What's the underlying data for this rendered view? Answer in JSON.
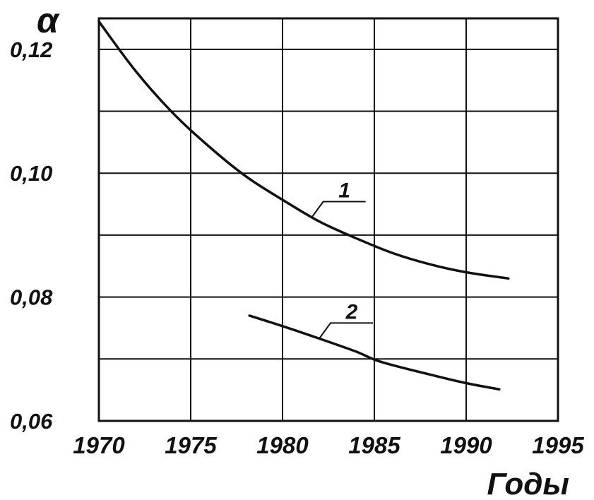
{
  "chart_data": {
    "type": "line",
    "title": "",
    "ylabel": "α",
    "xlabel": "Годы",
    "x_ticks": [
      "1970",
      "1975",
      "1980",
      "1985",
      "1990",
      "1995"
    ],
    "y_ticks": [
      "0,06",
      "0,08",
      "0,10",
      "0,12"
    ],
    "xlim": [
      1970,
      1995
    ],
    "ylim": [
      0.06,
      0.125
    ],
    "grid": true,
    "line_color": "#111111",
    "series": [
      {
        "name": "1",
        "x": [
          1970,
          1972,
          1974,
          1976,
          1978,
          1980,
          1982,
          1984,
          1986,
          1988,
          1990,
          1992.3
        ],
        "y": [
          0.1245,
          0.1165,
          0.1098,
          0.1043,
          0.0995,
          0.0957,
          0.0922,
          0.0895,
          0.0871,
          0.0853,
          0.084,
          0.083
        ]
      },
      {
        "name": "2",
        "x": [
          1978.2,
          1980,
          1982,
          1984,
          1985,
          1986,
          1988,
          1990,
          1991.8
        ],
        "y": [
          0.077,
          0.0753,
          0.0733,
          0.0712,
          0.0699,
          0.069,
          0.0675,
          0.0661,
          0.0651
        ]
      }
    ]
  }
}
